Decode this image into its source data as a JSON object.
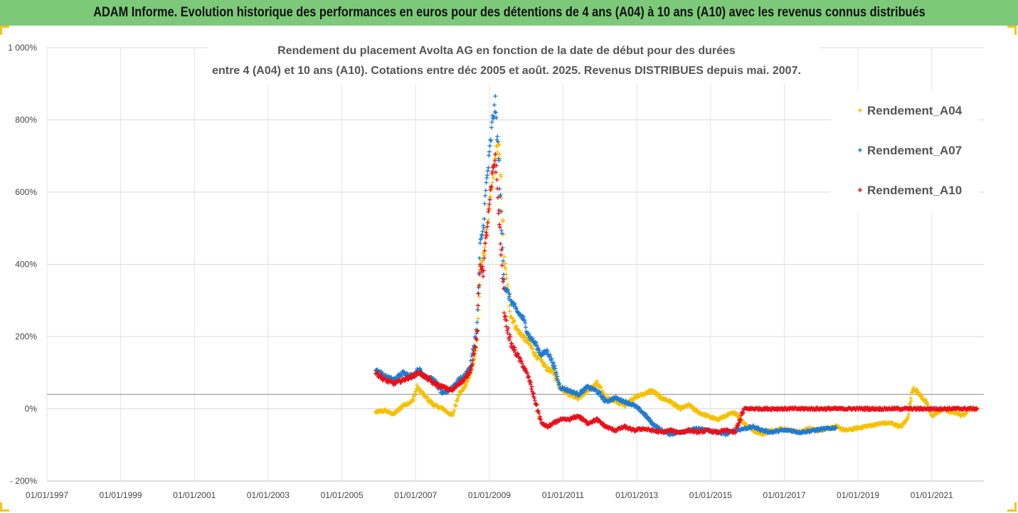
{
  "banner": {
    "text": "ADAM Informe. Evolution historique des performances en euros pour des détentions de 4 ans (A04) à 10 ans (A10) avec les revenus connus distribués"
  },
  "chart_data": {
    "type": "scatter",
    "title_line1": "Rendement du placement Avolta AG en fonction de la date de début pour des durées",
    "title_line2": "entre 4 (A04) et 10 ans (A10). Cotations entre déc 2005 et août. 2025. Revenus DISTRIBUES depuis mai. 2007.",
    "xlabel": "",
    "ylabel": "",
    "xlim": [
      "1997-01-01",
      "2022-06-01"
    ],
    "ylim": [
      -200,
      1000
    ],
    "y_ticks": [
      -200,
      0,
      200,
      400,
      600,
      800,
      1000
    ],
    "y_tick_labels": [
      "- 200%",
      "0%",
      "200%",
      "400%",
      "600%",
      "800%",
      "1 000%"
    ],
    "x_ticks": [
      "1997-01-01",
      "1999-01-01",
      "2001-01-01",
      "2003-01-01",
      "2005-01-01",
      "2007-01-01",
      "2009-01-01",
      "2011-01-01",
      "2013-01-01",
      "2015-01-01",
      "2017-01-01",
      "2019-01-01",
      "2021-01-01"
    ],
    "x_tick_labels": [
      "01/01/1997",
      "01/01/1999",
      "01/01/2001",
      "01/01/2003",
      "01/01/2005",
      "01/01/2007",
      "01/01/2009",
      "01/01/2011",
      "01/01/2013",
      "01/01/2015",
      "01/01/2017",
      "01/01/2019",
      "01/01/2021"
    ],
    "reference_line_y": 40,
    "grid": "horizontal",
    "legend_position": "top-right",
    "marker": "plus",
    "series": [
      {
        "name": "Rendement_A04",
        "color": "#f5c000",
        "x": [
          "2005-12-01",
          "2006-03-01",
          "2006-06-01",
          "2006-09-01",
          "2006-12-01",
          "2007-01-15",
          "2007-04-01",
          "2007-07-01",
          "2007-10-01",
          "2008-01-01",
          "2008-03-01",
          "2008-05-01",
          "2008-07-01",
          "2008-09-01",
          "2008-10-01",
          "2008-11-01",
          "2008-12-01",
          "2009-01-01",
          "2009-02-01",
          "2009-03-01",
          "2009-04-01",
          "2009-05-01",
          "2009-06-01",
          "2009-08-01",
          "2009-10-01",
          "2009-12-01",
          "2010-02-01",
          "2010-04-01",
          "2010-06-01",
          "2010-08-01",
          "2010-10-01",
          "2010-12-01",
          "2011-03-01",
          "2011-06-01",
          "2011-09-01",
          "2011-12-01",
          "2012-03-01",
          "2012-06-01",
          "2012-09-01",
          "2012-12-01",
          "2013-03-01",
          "2013-06-01",
          "2013-09-01",
          "2013-12-01",
          "2014-03-01",
          "2014-06-01",
          "2014-09-01",
          "2014-12-01",
          "2015-03-01",
          "2015-06-01",
          "2015-09-01",
          "2015-12-01",
          "2016-03-01",
          "2016-06-01",
          "2016-09-01",
          "2016-12-01",
          "2017-03-01",
          "2017-06-01",
          "2017-09-01",
          "2017-12-01",
          "2018-03-01",
          "2018-06-01",
          "2018-09-01",
          "2018-12-01",
          "2019-03-01",
          "2019-06-01",
          "2019-09-01",
          "2019-12-01",
          "2020-03-01",
          "2020-05-01",
          "2020-07-01",
          "2020-09-01",
          "2020-11-01",
          "2021-01-01",
          "2021-03-01",
          "2021-05-01",
          "2021-07-01",
          "2021-09-01",
          "2021-11-01",
          "2022-01-01",
          "2022-04-01"
        ],
        "y": [
          -10,
          -5,
          -15,
          10,
          20,
          60,
          35,
          10,
          0,
          -20,
          40,
          60,
          100,
          180,
          380,
          420,
          480,
          560,
          620,
          700,
          740,
          600,
          400,
          260,
          220,
          200,
          180,
          150,
          130,
          110,
          100,
          60,
          40,
          30,
          50,
          70,
          30,
          20,
          10,
          30,
          40,
          50,
          30,
          20,
          0,
          10,
          -10,
          -20,
          -30,
          -20,
          -10,
          -40,
          -60,
          -70,
          -60,
          -55,
          -60,
          -65,
          -55,
          -60,
          -55,
          -50,
          -60,
          -55,
          -50,
          -45,
          -40,
          -40,
          -50,
          -30,
          60,
          40,
          20,
          -20,
          -10,
          0,
          -10,
          -10,
          -20,
          0,
          0
        ]
      },
      {
        "name": "Rendement_A07",
        "color": "#1f7bd1",
        "x": [
          "2005-12-01",
          "2006-03-01",
          "2006-06-01",
          "2006-09-01",
          "2006-12-01",
          "2007-02-01",
          "2007-04-01",
          "2007-07-01",
          "2007-10-01",
          "2008-01-01",
          "2008-03-01",
          "2008-05-01",
          "2008-07-01",
          "2008-09-01",
          "2008-10-01",
          "2008-11-01",
          "2008-12-01",
          "2009-01-01",
          "2009-02-01",
          "2009-03-01",
          "2009-04-01",
          "2009-05-01",
          "2009-06-01",
          "2009-08-01",
          "2009-10-01",
          "2009-12-01",
          "2010-02-01",
          "2010-04-01",
          "2010-06-01",
          "2010-08-01",
          "2010-10-01",
          "2010-12-01",
          "2011-03-01",
          "2011-06-01",
          "2011-09-01",
          "2011-12-01",
          "2012-03-01",
          "2012-06-01",
          "2012-09-01",
          "2012-12-01",
          "2013-03-01",
          "2013-06-01",
          "2013-09-01",
          "2013-12-01",
          "2014-03-01",
          "2014-06-01",
          "2014-09-01",
          "2014-12-01",
          "2015-03-01",
          "2015-06-01",
          "2015-09-01",
          "2015-12-01",
          "2016-03-01",
          "2016-06-01",
          "2016-09-01",
          "2016-12-01",
          "2017-03-01",
          "2017-06-01",
          "2017-09-01",
          "2017-12-01",
          "2018-03-01",
          "2018-06-01"
        ],
        "y": [
          110,
          90,
          80,
          100,
          90,
          110,
          90,
          80,
          40,
          60,
          80,
          90,
          120,
          230,
          450,
          500,
          620,
          700,
          800,
          840,
          700,
          500,
          340,
          300,
          270,
          250,
          200,
          180,
          150,
          160,
          120,
          60,
          50,
          40,
          60,
          50,
          20,
          30,
          20,
          10,
          -10,
          -40,
          -60,
          -70,
          -65,
          -60,
          -55,
          -60,
          -65,
          -70,
          -60,
          -55,
          -50,
          -60,
          -65,
          -60,
          -60,
          -65,
          -62,
          -58,
          -55,
          -52
        ]
      },
      {
        "name": "Rendement_A10",
        "color": "#e8101a",
        "x": [
          "2005-12-01",
          "2006-03-01",
          "2006-06-01",
          "2006-09-01",
          "2006-12-01",
          "2007-02-01",
          "2007-04-01",
          "2007-07-01",
          "2007-10-01",
          "2008-01-01",
          "2008-03-01",
          "2008-05-01",
          "2008-07-01",
          "2008-09-01",
          "2008-10-01",
          "2008-11-01",
          "2008-12-01",
          "2009-01-01",
          "2009-02-01",
          "2009-03-01",
          "2009-04-01",
          "2009-05-01",
          "2009-06-01",
          "2009-08-01",
          "2009-10-01",
          "2009-12-01",
          "2010-02-01",
          "2010-04-01",
          "2010-06-01",
          "2010-08-01",
          "2010-10-01",
          "2010-12-01",
          "2011-03-01",
          "2011-06-01",
          "2011-09-01",
          "2011-12-01",
          "2012-03-01",
          "2012-06-01",
          "2012-09-01",
          "2012-12-01",
          "2013-03-01",
          "2013-06-01",
          "2013-09-01",
          "2013-12-01",
          "2014-03-01",
          "2014-06-01",
          "2014-09-01",
          "2014-12-01",
          "2015-03-01",
          "2015-06-01",
          "2015-09-01",
          "2015-12-01",
          "2016-06-01",
          "2017-01-01",
          "2017-06-01",
          "2018-01-01",
          "2018-06-01",
          "2019-01-01",
          "2019-06-01",
          "2020-01-01",
          "2020-06-01",
          "2021-01-01",
          "2021-06-01",
          "2022-01-01",
          "2022-04-01"
        ],
        "y": [
          100,
          80,
          70,
          80,
          90,
          100,
          90,
          70,
          60,
          50,
          70,
          80,
          110,
          200,
          400,
          380,
          480,
          560,
          650,
          700,
          560,
          420,
          260,
          180,
          150,
          120,
          80,
          20,
          -40,
          -50,
          -40,
          -30,
          -30,
          -20,
          -40,
          -30,
          -50,
          -60,
          -50,
          -60,
          -55,
          -60,
          -65,
          -60,
          -65,
          -60,
          -65,
          -60,
          -65,
          -60,
          -65,
          0,
          0,
          0,
          0,
          0,
          0,
          0,
          0,
          0,
          0,
          0,
          0,
          0,
          0
        ]
      }
    ]
  }
}
